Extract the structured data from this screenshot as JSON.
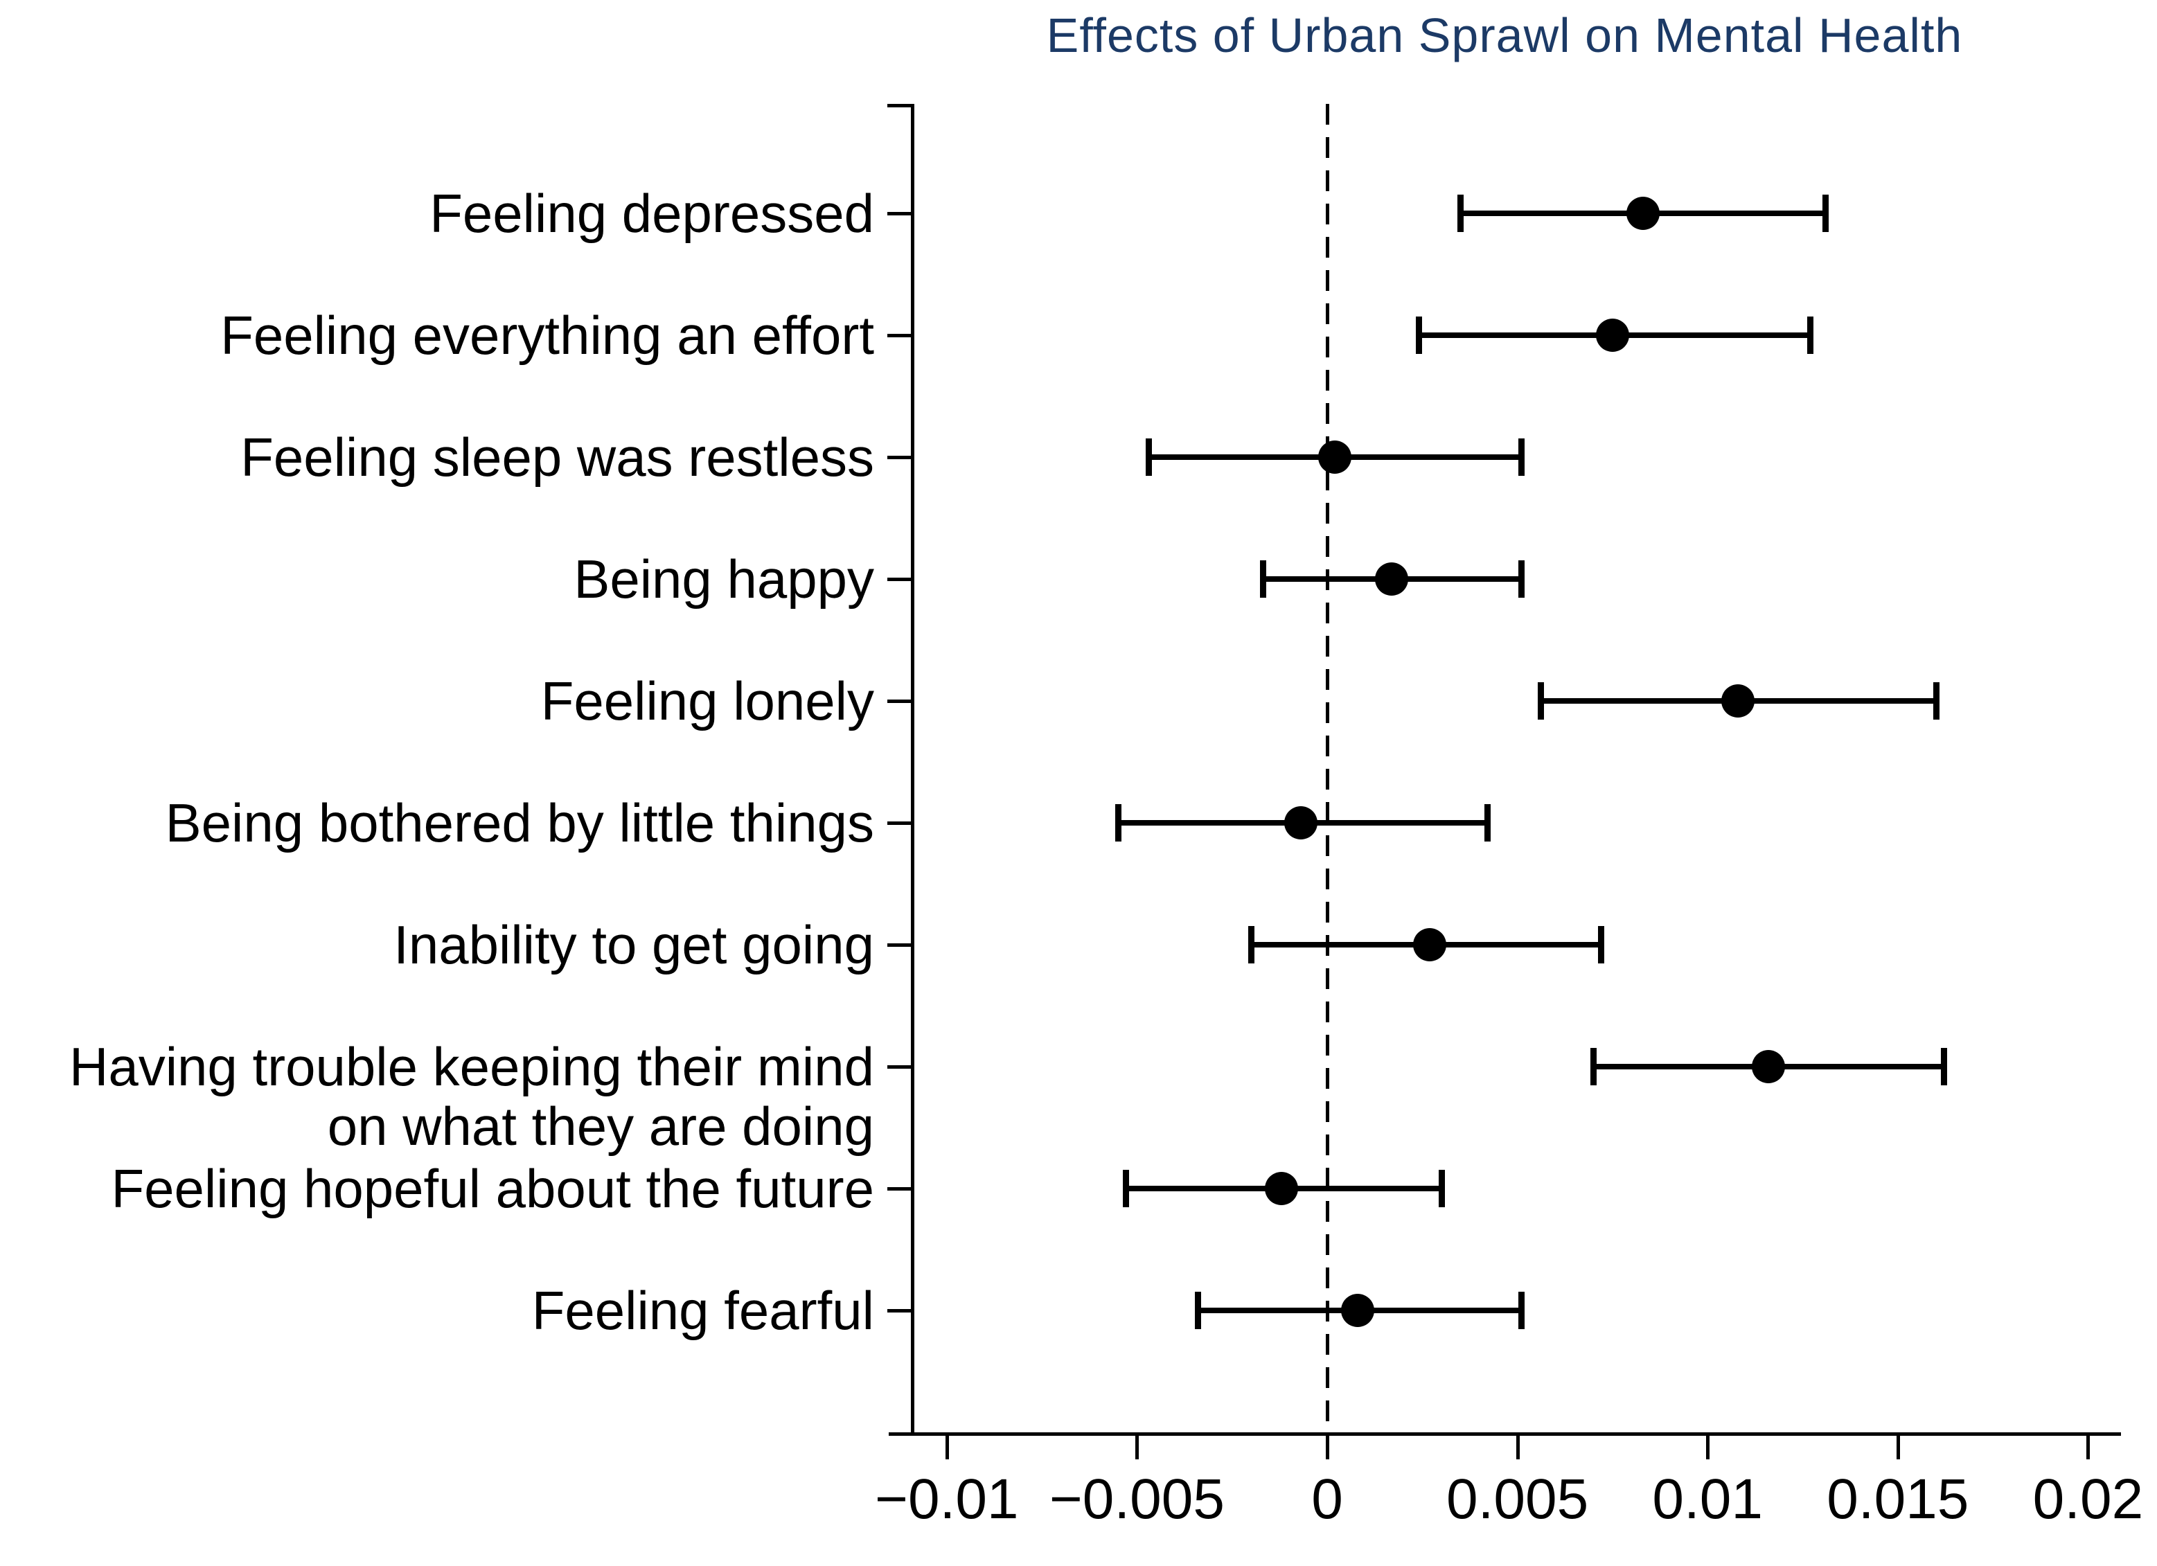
{
  "figure": {
    "background": "#ffffff",
    "axis_color": "#000000"
  },
  "chart_data": {
    "type": "scatter",
    "subtype": "coefficient-forest-plot",
    "title": "Effects of Urban Sprawl on Mental Health",
    "title_color": "#1c3a66",
    "orientation": "horizontal",
    "marker_color": "#000000",
    "ci_color": "#000000",
    "grid": false,
    "legend": false,
    "xlabel": "",
    "ylabel": "",
    "xlim": [
      -0.0115,
      0.0215
    ],
    "reference_line_x": 0,
    "reference_line_style": "dashed",
    "x_ticks": [
      {
        "value": -0.01,
        "label": "−0.01"
      },
      {
        "value": -0.005,
        "label": "−0.005"
      },
      {
        "value": 0,
        "label": "0"
      },
      {
        "value": 0.005,
        "label": "0.005"
      },
      {
        "value": 0.01,
        "label": "0.01"
      },
      {
        "value": 0.015,
        "label": "0.015"
      },
      {
        "value": 0.02,
        "label": "0.02"
      }
    ],
    "points": [
      {
        "label": "Feeling depressed",
        "estimate": 0.0083,
        "ci_low": 0.0035,
        "ci_high": 0.0131
      },
      {
        "label": "Feeling everything an effort",
        "estimate": 0.0075,
        "ci_low": 0.0024,
        "ci_high": 0.0127
      },
      {
        "label": "Feeling sleep was restless",
        "estimate": 0.0002,
        "ci_low": -0.0047,
        "ci_high": 0.0051
      },
      {
        "label": "Being happy",
        "estimate": 0.0017,
        "ci_low": -0.0017,
        "ci_high": 0.0051
      },
      {
        "label": "Feeling lonely",
        "estimate": 0.0108,
        "ci_low": 0.0056,
        "ci_high": 0.016
      },
      {
        "label": "Being bothered by little things",
        "estimate": -0.0007,
        "ci_low": -0.0055,
        "ci_high": 0.0042
      },
      {
        "label": "Inability to get going",
        "estimate": 0.0027,
        "ci_low": -0.002,
        "ci_high": 0.0072
      },
      {
        "label": "Having trouble keeping their mind\non what they are doing",
        "estimate": 0.0116,
        "ci_low": 0.007,
        "ci_high": 0.0162
      },
      {
        "label": "Feeling hopeful about the future",
        "estimate": -0.0012,
        "ci_low": -0.0053,
        "ci_high": 0.003
      },
      {
        "label": "Feeling fearful",
        "estimate": 0.0008,
        "ci_low": -0.0034,
        "ci_high": 0.0051
      }
    ]
  }
}
